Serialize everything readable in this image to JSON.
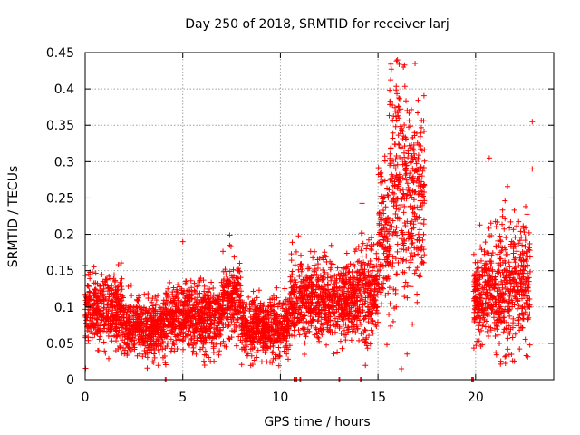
{
  "chart_data": {
    "type": "scatter",
    "title": "Day 250 of 2018, SRMTID for receiver larj",
    "xlabel": "GPS time / hours",
    "ylabel": "SRMTID / TECUs",
    "xlim": [
      0,
      24
    ],
    "ylim": [
      0,
      0.45
    ],
    "x_ticks": [
      0,
      5,
      10,
      15,
      20
    ],
    "x_tick_labels": [
      "0",
      "5",
      "10",
      "15",
      "20"
    ],
    "y_ticks": [
      0,
      0.05,
      0.1,
      0.15,
      0.2,
      0.25,
      0.3,
      0.35,
      0.4,
      0.45
    ],
    "y_tick_labels": [
      "0",
      "0.05",
      "0.1",
      "0.15",
      "0.2",
      "0.25",
      "0.3",
      "0.35",
      "0.4",
      "0.45"
    ],
    "grid": true,
    "marker": "+",
    "marker_color": "#ff0000",
    "series": [
      {
        "name": "SRMTID",
        "segments": [
          {
            "x_start": 0.0,
            "x_end": 2.0,
            "mean": 0.095,
            "spread": 0.06
          },
          {
            "x_start": 2.0,
            "x_end": 4.0,
            "mean": 0.07,
            "spread": 0.05
          },
          {
            "x_start": 4.0,
            "x_end": 7.0,
            "mean": 0.085,
            "spread": 0.06
          },
          {
            "x_start": 7.0,
            "x_end": 8.0,
            "mean": 0.11,
            "spread": 0.07
          },
          {
            "x_start": 8.0,
            "x_end": 10.5,
            "mean": 0.07,
            "spread": 0.05
          },
          {
            "x_start": 10.5,
            "x_end": 14.0,
            "mean": 0.11,
            "spread": 0.07
          },
          {
            "x_start": 14.0,
            "x_end": 15.0,
            "mean": 0.12,
            "spread": 0.09
          },
          {
            "x_start": 15.0,
            "x_end": 15.6,
            "mean": 0.2,
            "spread": 0.13
          },
          {
            "x_start": 15.6,
            "x_end": 16.6,
            "mean": 0.27,
            "spread": 0.2
          },
          {
            "x_start": 16.6,
            "x_end": 17.4,
            "mean": 0.25,
            "spread": 0.16
          },
          {
            "x_start": 19.9,
            "x_end": 21.0,
            "mean": 0.12,
            "spread": 0.09
          },
          {
            "x_start": 21.0,
            "x_end": 22.0,
            "mean": 0.13,
            "spread": 0.12
          },
          {
            "x_start": 22.0,
            "x_end": 22.8,
            "mean": 0.13,
            "spread": 0.11
          }
        ],
        "notable_points": [
          {
            "x": 16.0,
            "y": 0.44
          },
          {
            "x": 16.3,
            "y": 0.43
          },
          {
            "x": 16.9,
            "y": 0.435
          },
          {
            "x": 22.9,
            "y": 0.355
          },
          {
            "x": 22.9,
            "y": 0.29
          },
          {
            "x": 5.0,
            "y": 0.19
          },
          {
            "x": 7.4,
            "y": 0.185
          },
          {
            "x": 20.7,
            "y": 0.305
          },
          {
            "x": 16.2,
            "y": 0.015
          }
        ],
        "zero_points": [
          4.1,
          10.7,
          10.8,
          11.0,
          13.0,
          14.1,
          19.8,
          19.85
        ]
      }
    ]
  }
}
